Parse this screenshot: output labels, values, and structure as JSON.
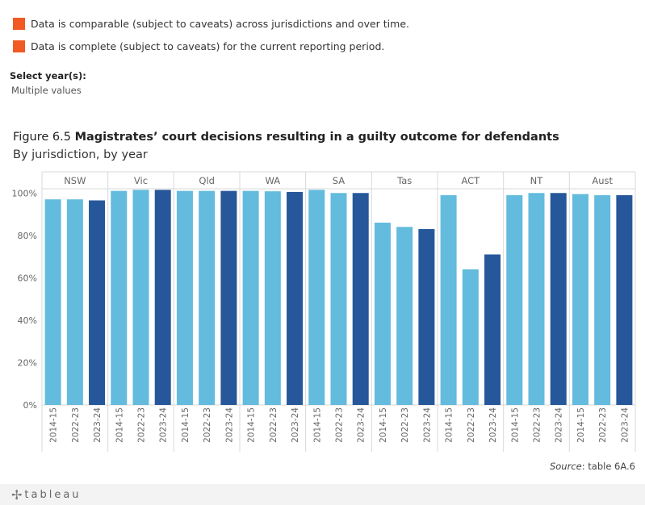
{
  "legend": {
    "items": [
      {
        "text": "Data is comparable (subject to caveats) across jurisdictions and over time.",
        "color": "#f15a24"
      },
      {
        "text": "Data is complete (subject to caveats) for the current reporting period.",
        "color": "#f15a24"
      }
    ]
  },
  "filter": {
    "label": "Select year(s):",
    "value": "Multiple values"
  },
  "figure": {
    "number": "Figure 6.5",
    "title": "Magistrates’ court decisions resulting in a guilty outcome for defendants",
    "subtitle": "By jurisdiction, by year"
  },
  "source": {
    "label": "Source",
    "text": ": table 6A.6"
  },
  "footer": {
    "logo_text": "tableau",
    "logo_icon": "tableau-plus-icon"
  },
  "chart_data": {
    "type": "bar",
    "panels": [
      "NSW",
      "Vic",
      "Qld",
      "WA",
      "SA",
      "Tas",
      "ACT",
      "NT",
      "Aust"
    ],
    "years": [
      "2014-15",
      "2022-23",
      "2023-24"
    ],
    "values": {
      "NSW": [
        97,
        97,
        96.5
      ],
      "Vic": [
        101,
        101.5,
        101.5
      ],
      "Qld": [
        101,
        101,
        101
      ],
      "WA": [
        101,
        100.8,
        100.5
      ],
      "SA": [
        101.5,
        100,
        100
      ],
      "Tas": [
        86,
        84,
        83
      ],
      "ACT": [
        99,
        64,
        71
      ],
      "NT": [
        99,
        100,
        100
      ],
      "Aust": [
        99.5,
        99,
        99
      ]
    },
    "yticks": [
      "0%",
      "20%",
      "40%",
      "60%",
      "80%",
      "100%"
    ],
    "ylim": [
      0,
      102
    ],
    "colors": {
      "2014-15": "#63bbdd",
      "2022-23": "#63bbdd",
      "2023-24": "#26579a"
    },
    "grid": false
  }
}
